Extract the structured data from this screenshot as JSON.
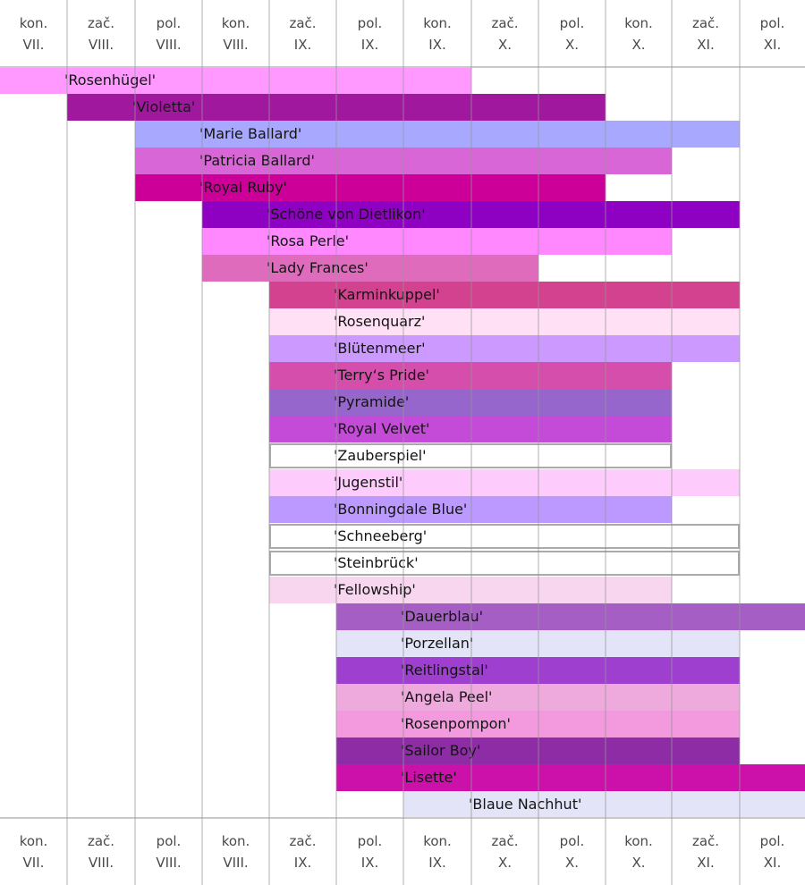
{
  "chart_data": {
    "type": "bar",
    "periods": [
      {
        "line1": "kon.",
        "line2": "VII."
      },
      {
        "line1": "zač.",
        "line2": "VIII."
      },
      {
        "line1": "pol.",
        "line2": "VIII."
      },
      {
        "line1": "kon.",
        "line2": "VIII."
      },
      {
        "line1": "zač.",
        "line2": "IX."
      },
      {
        "line1": "pol.",
        "line2": "IX."
      },
      {
        "line1": "kon.",
        "line2": "IX."
      },
      {
        "line1": "zač.",
        "line2": "X."
      },
      {
        "line1": "pol.",
        "line2": "X."
      },
      {
        "line1": "kon.",
        "line2": "X."
      },
      {
        "line1": "zač.",
        "line2": "XI."
      },
      {
        "line1": "pol.",
        "line2": "XI."
      }
    ],
    "varieties": [
      {
        "name": "'Rosenhügel'",
        "start": 0,
        "end": 6,
        "color": "#ff99ff"
      },
      {
        "name": "'Violetta'",
        "start": 1,
        "end": 8,
        "color": "#a0189e"
      },
      {
        "name": "'Marie Ballard'",
        "start": 2,
        "end": 10,
        "color": "#a8a8ff"
      },
      {
        "name": "'Patricia Ballard'",
        "start": 2,
        "end": 9,
        "color": "#d966d6"
      },
      {
        "name": "'Royal Ruby'",
        "start": 2,
        "end": 8,
        "color": "#cc0099"
      },
      {
        "name": "'Schöne von Dietlikon'",
        "start": 3,
        "end": 10,
        "color": "#8e00c2"
      },
      {
        "name": "'Rosa Perle'",
        "start": 3,
        "end": 9,
        "color": "#ff88ff"
      },
      {
        "name": "'Lady Frances'",
        "start": 3,
        "end": 7,
        "color": "#de6bbb"
      },
      {
        "name": "'Karminkuppel'",
        "start": 4,
        "end": 10,
        "color": "#d2428f"
      },
      {
        "name": "'Rosenquarz'",
        "start": 4,
        "end": 10,
        "color": "#ffe0f4"
      },
      {
        "name": "'Blütenmeer'",
        "start": 4,
        "end": 10,
        "color": "#cc99ff"
      },
      {
        "name": "'Terry‘s Pride'",
        "start": 4,
        "end": 9,
        "color": "#d64eac"
      },
      {
        "name": "'Pyramide'",
        "start": 4,
        "end": 9,
        "color": "#9666cc"
      },
      {
        "name": "'Royal Velvet'",
        "start": 4,
        "end": 9,
        "color": "#c44ad8"
      },
      {
        "name": "'Zauberspiel'",
        "start": 4,
        "end": 9,
        "color": "#ffffff"
      },
      {
        "name": "'Jugenstil'",
        "start": 4,
        "end": 10,
        "color": "#fdccfd"
      },
      {
        "name": "'Bonningdale Blue'",
        "start": 4,
        "end": 9,
        "color": "#bb99ff"
      },
      {
        "name": "'Schneeberg'",
        "start": 4,
        "end": 10,
        "color": "#ffffff"
      },
      {
        "name": "'Steinbrück'",
        "start": 4,
        "end": 10,
        "color": "#ffffff"
      },
      {
        "name": "'Fellowship'",
        "start": 4,
        "end": 9,
        "color": "#f9d6f0"
      },
      {
        "name": "'Dauerblau'",
        "start": 5,
        "end": 11,
        "color": "#a45ec4"
      },
      {
        "name": "'Porzellan'",
        "start": 5,
        "end": 10,
        "color": "#e4e4f8"
      },
      {
        "name": "'Reitlingstal'",
        "start": 5,
        "end": 10,
        "color": "#9e3fd0"
      },
      {
        "name": "'Angela Peel'",
        "start": 5,
        "end": 10,
        "color": "#eeaadd"
      },
      {
        "name": "'Rosenpompon'",
        "start": 5,
        "end": 10,
        "color": "#f39ade"
      },
      {
        "name": "'Sailor Boy'",
        "start": 5,
        "end": 10,
        "color": "#8e2ca6"
      },
      {
        "name": "'Lisette'",
        "start": 5,
        "end": 11,
        "color": "#cc11aa"
      },
      {
        "name": "'Blaue Nachhut'",
        "start": 6,
        "end": 11,
        "color": "#e4e4f8"
      }
    ]
  }
}
